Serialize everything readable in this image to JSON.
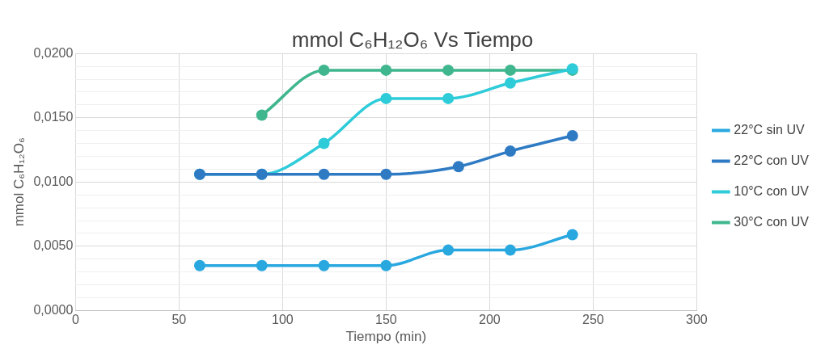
{
  "chart_data": {
    "type": "line",
    "title": "mmol C₆H₁₂O₆ Vs Tiempo",
    "xlabel": "Tiempo (min)",
    "ylabel": "mmol C₆H₁₂O₆",
    "series": [
      {
        "name": "22°C sin UV",
        "color": "#29a8e0",
        "x": [
          60,
          90,
          120,
          150,
          180,
          210,
          240
        ],
        "values": [
          0.0035,
          0.0035,
          0.0035,
          0.0035,
          0.0047,
          0.0047,
          0.0059
        ]
      },
      {
        "name": "22°C con UV",
        "color": "#2e7bc4",
        "x": [
          60,
          90,
          120,
          150,
          185,
          210,
          240
        ],
        "values": [
          0.0106,
          0.0106,
          0.0106,
          0.0106,
          0.0112,
          0.0124,
          0.0136
        ]
      },
      {
        "name": "10°C con UV",
        "color": "#2ecbd9",
        "x": [
          60,
          90,
          120,
          150,
          180,
          210,
          240
        ],
        "values": [
          0.0106,
          0.0106,
          0.013,
          0.0165,
          0.0165,
          0.0177,
          0.0188
        ]
      },
      {
        "name": "30°C con UV",
        "color": "#3fb68e",
        "x": [
          90,
          120,
          150,
          180,
          210,
          240
        ],
        "values": [
          0.0152,
          0.0187,
          0.0187,
          0.0187,
          0.0187,
          0.0187
        ]
      }
    ],
    "xlim": [
      0,
      300
    ],
    "xticks": [
      0,
      50,
      100,
      150,
      200,
      250,
      300
    ],
    "ylim": [
      0,
      0.02
    ],
    "yticks": [
      {
        "value": 0,
        "label": "0,0000"
      },
      {
        "value": 0.001,
        "label": null
      },
      {
        "value": 0.002,
        "label": null
      },
      {
        "value": 0.003,
        "label": null
      },
      {
        "value": 0.004,
        "label": null
      },
      {
        "value": 0.005,
        "label": "0,0050"
      },
      {
        "value": 0.006,
        "label": null
      },
      {
        "value": 0.007,
        "label": null
      },
      {
        "value": 0.008,
        "label": null
      },
      {
        "value": 0.009,
        "label": null
      },
      {
        "value": 0.01,
        "label": "0,0100"
      },
      {
        "value": 0.011,
        "label": null
      },
      {
        "value": 0.012,
        "label": null
      },
      {
        "value": 0.013,
        "label": null
      },
      {
        "value": 0.014,
        "label": null
      },
      {
        "value": 0.015,
        "label": "0,0150"
      },
      {
        "value": 0.016,
        "label": null
      },
      {
        "value": 0.017,
        "label": null
      },
      {
        "value": 0.018,
        "label": null
      },
      {
        "value": 0.019,
        "label": null
      },
      {
        "value": 0.02,
        "label": "0,0200"
      }
    ],
    "grid": true,
    "legend": "right",
    "marker": "circle"
  }
}
